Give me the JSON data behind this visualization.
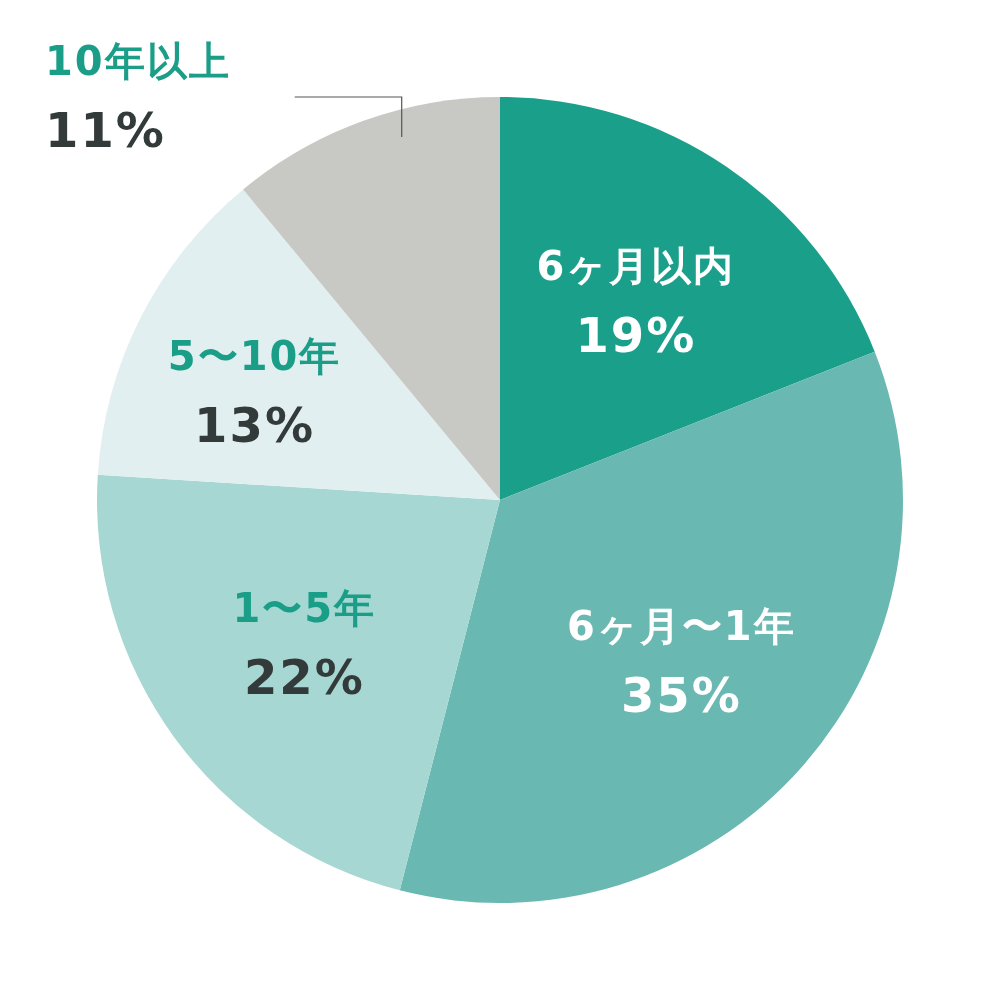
{
  "chart_data": {
    "type": "pie",
    "categories": [
      "6ヶ月以内",
      "6ヶ月〜1年",
      "1〜5年",
      "5〜10年",
      "10年以上"
    ],
    "values": [
      19,
      35,
      22,
      13,
      11
    ],
    "value_labels": [
      "19%",
      "35%",
      "22%",
      "13%",
      "11%"
    ],
    "colors": [
      "#1aa08a",
      "#6ab8b2",
      "#a6d7d3",
      "#e2eff0",
      "#c8c8c4"
    ]
  }
}
